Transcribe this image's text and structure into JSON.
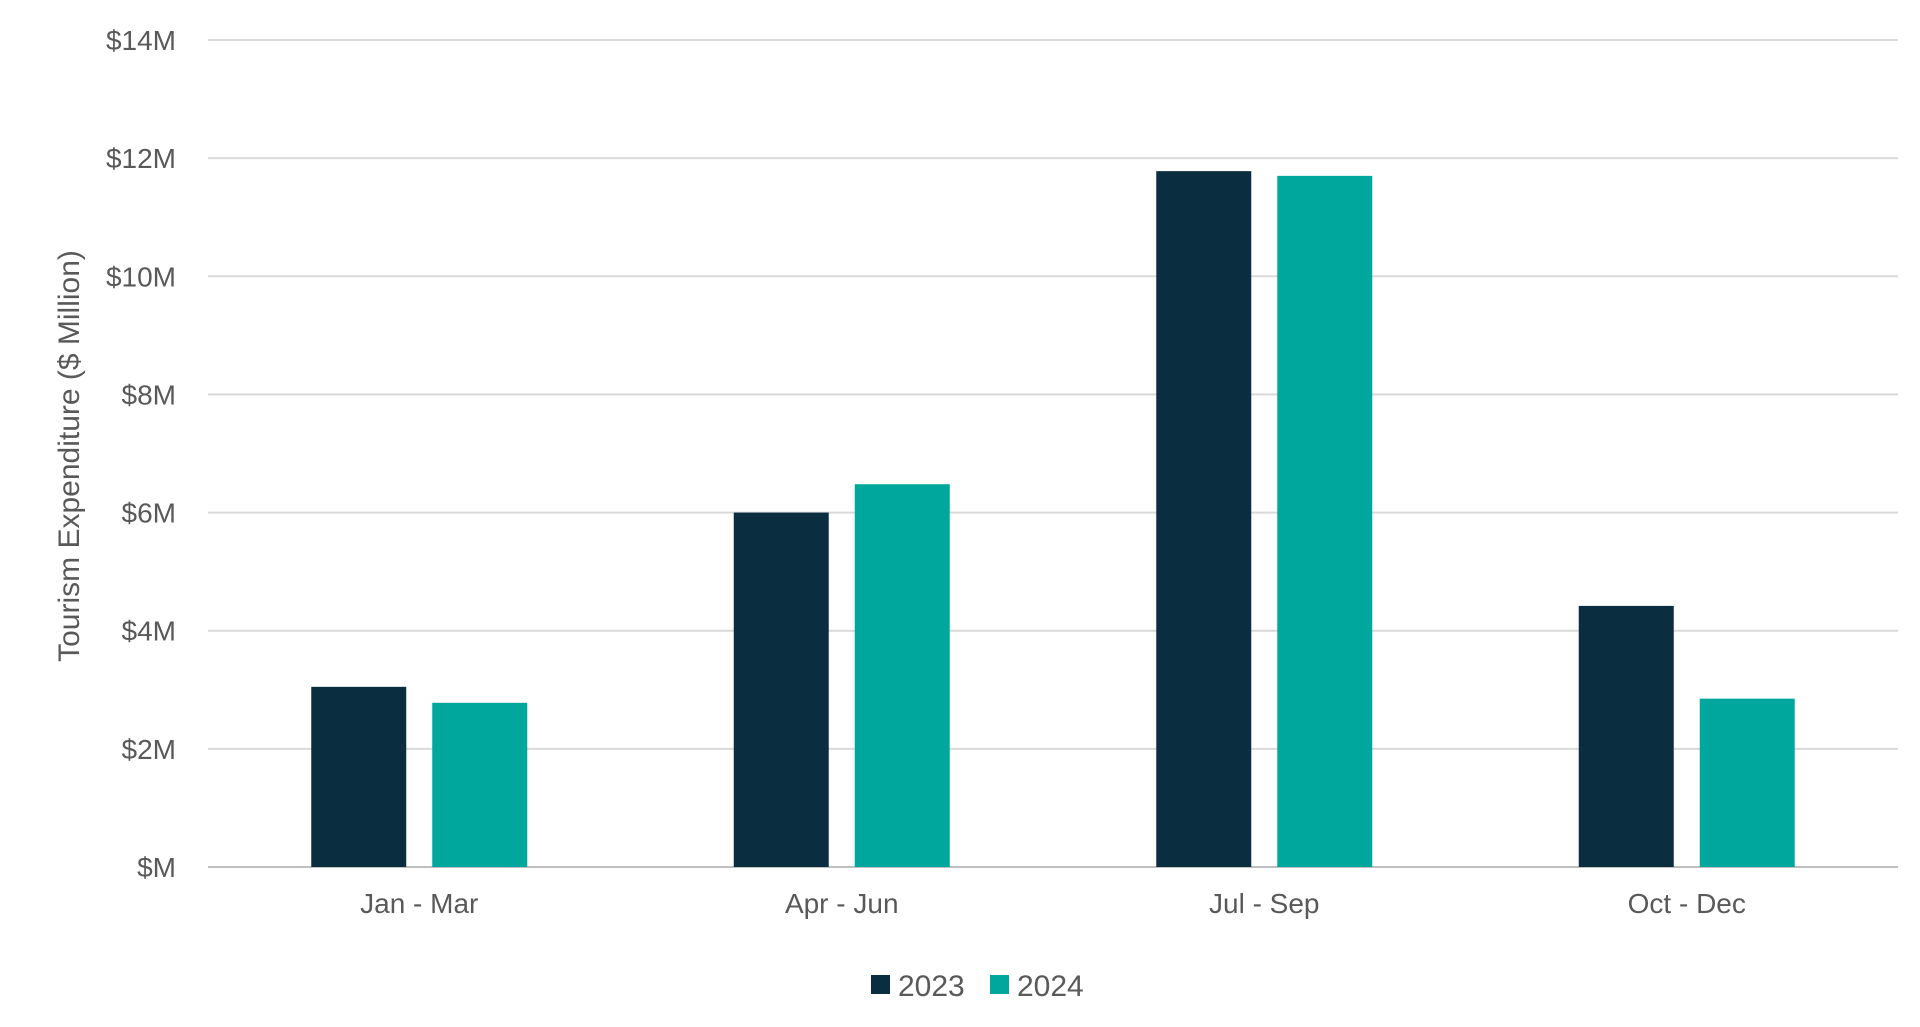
{
  "chart_data": {
    "type": "bar",
    "categories": [
      "Jan - Mar",
      "Apr - Jun",
      "Jul - Sep",
      "Oct - Dec"
    ],
    "series": [
      {
        "name": "2023",
        "values": [
          3.05,
          6.0,
          11.78,
          4.42
        ],
        "color": "#0a2e40"
      },
      {
        "name": "2024",
        "values": [
          2.78,
          6.48,
          11.7,
          2.85
        ],
        "color": "#00a79c"
      }
    ],
    "ylabel": "Tourism Expenditure ($ Million)",
    "xlabel": "",
    "ylim": [
      0,
      14
    ],
    "yticks": [
      0,
      2,
      4,
      6,
      8,
      10,
      12,
      14
    ],
    "ytick_labels": [
      "$M",
      "$2M",
      "$4M",
      "$6M",
      "$8M",
      "$10M",
      "$12M",
      "$14M"
    ],
    "grid": true,
    "legend_position": "bottom",
    "colors": {
      "grid": "#d9d9d9",
      "axis": "#bfbfbf",
      "text": "#595959"
    }
  }
}
